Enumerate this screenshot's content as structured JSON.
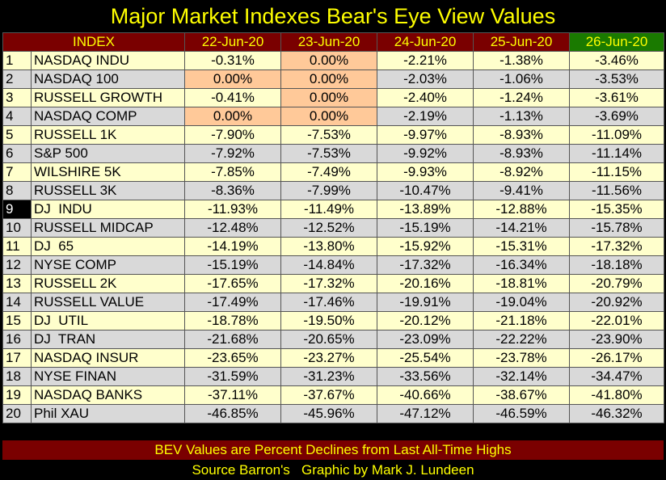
{
  "title": "Major Market Indexes Bear's Eye View Values",
  "colors": {
    "header_bg": "#7a0000",
    "header_text": "#ffff00",
    "latest_header_bg": "#1a7a00",
    "highlight_cell": "#ffc999",
    "odd_row": "#ffffcc",
    "even_row": "#d9d9d9"
  },
  "chart_data": {
    "type": "table",
    "columns": [
      "INDEX",
      "22-Jun-20",
      "23-Jun-20",
      "24-Jun-20",
      "25-Jun-20",
      "26-Jun-20"
    ],
    "rows": [
      {
        "rank": "1",
        "name": "NASDAQ INDU",
        "values": [
          "-0.31%",
          "0.00%",
          "-2.21%",
          "-1.38%",
          "-3.46%"
        ],
        "highlight": [
          false,
          true,
          false,
          false,
          false
        ]
      },
      {
        "rank": "2",
        "name": "NASDAQ 100",
        "values": [
          "0.00%",
          "0.00%",
          "-2.03%",
          "-1.06%",
          "-3.53%"
        ],
        "highlight": [
          true,
          true,
          false,
          false,
          false
        ]
      },
      {
        "rank": "3",
        "name": "RUSSELL GROWTH",
        "values": [
          "-0.41%",
          "0.00%",
          "-2.40%",
          "-1.24%",
          "-3.61%"
        ],
        "highlight": [
          false,
          true,
          false,
          false,
          false
        ]
      },
      {
        "rank": "4",
        "name": "NASDAQ COMP",
        "values": [
          "0.00%",
          "0.00%",
          "-2.19%",
          "-1.13%",
          "-3.69%"
        ],
        "highlight": [
          true,
          true,
          false,
          false,
          false
        ]
      },
      {
        "rank": "5",
        "name": "RUSSELL 1K",
        "values": [
          "-7.90%",
          "-7.53%",
          "-9.97%",
          "-8.93%",
          "-11.09%"
        ],
        "highlight": [
          false,
          false,
          false,
          false,
          false
        ]
      },
      {
        "rank": "6",
        "name": "S&P 500",
        "values": [
          "-7.92%",
          "-7.53%",
          "-9.92%",
          "-8.93%",
          "-11.14%"
        ],
        "highlight": [
          false,
          false,
          false,
          false,
          false
        ]
      },
      {
        "rank": "7",
        "name": "WILSHIRE 5K",
        "values": [
          "-7.85%",
          "-7.49%",
          "-9.93%",
          "-8.92%",
          "-11.15%"
        ],
        "highlight": [
          false,
          false,
          false,
          false,
          false
        ]
      },
      {
        "rank": "8",
        "name": "RUSSELL 3K",
        "values": [
          "-8.36%",
          "-7.99%",
          "-10.47%",
          "-9.41%",
          "-11.56%"
        ],
        "highlight": [
          false,
          false,
          false,
          false,
          false
        ]
      },
      {
        "rank": "9",
        "name": "DJ  INDU",
        "values": [
          "-11.93%",
          "-11.49%",
          "-13.89%",
          "-12.88%",
          "-15.35%"
        ],
        "highlight": [
          false,
          false,
          false,
          false,
          false
        ],
        "rank_dark": true
      },
      {
        "rank": "10",
        "name": "RUSSELL MIDCAP",
        "values": [
          "-12.48%",
          "-12.52%",
          "-15.19%",
          "-14.21%",
          "-15.78%"
        ],
        "highlight": [
          false,
          false,
          false,
          false,
          false
        ]
      },
      {
        "rank": "11",
        "name": "DJ  65",
        "values": [
          "-14.19%",
          "-13.80%",
          "-15.92%",
          "-15.31%",
          "-17.32%"
        ],
        "highlight": [
          false,
          false,
          false,
          false,
          false
        ]
      },
      {
        "rank": "12",
        "name": "NYSE COMP",
        "values": [
          "-15.19%",
          "-14.84%",
          "-17.32%",
          "-16.34%",
          "-18.18%"
        ],
        "highlight": [
          false,
          false,
          false,
          false,
          false
        ]
      },
      {
        "rank": "13",
        "name": "RUSSELL 2K",
        "values": [
          "-17.65%",
          "-17.32%",
          "-20.16%",
          "-18.81%",
          "-20.79%"
        ],
        "highlight": [
          false,
          false,
          false,
          false,
          false
        ]
      },
      {
        "rank": "14",
        "name": "RUSSELL VALUE",
        "values": [
          "-17.49%",
          "-17.46%",
          "-19.91%",
          "-19.04%",
          "-20.92%"
        ],
        "highlight": [
          false,
          false,
          false,
          false,
          false
        ]
      },
      {
        "rank": "15",
        "name": "DJ  UTIL",
        "values": [
          "-18.78%",
          "-19.50%",
          "-20.12%",
          "-21.18%",
          "-22.01%"
        ],
        "highlight": [
          false,
          false,
          false,
          false,
          false
        ]
      },
      {
        "rank": "16",
        "name": "DJ  TRAN",
        "values": [
          "-21.68%",
          "-20.65%",
          "-23.09%",
          "-22.22%",
          "-23.90%"
        ],
        "highlight": [
          false,
          false,
          false,
          false,
          false
        ]
      },
      {
        "rank": "17",
        "name": "NASDAQ INSUR",
        "values": [
          "-23.65%",
          "-23.27%",
          "-25.54%",
          "-23.78%",
          "-26.17%"
        ],
        "highlight": [
          false,
          false,
          false,
          false,
          false
        ]
      },
      {
        "rank": "18",
        "name": "NYSE FINAN",
        "values": [
          "-31.59%",
          "-31.23%",
          "-33.56%",
          "-32.14%",
          "-34.47%"
        ],
        "highlight": [
          false,
          false,
          false,
          false,
          false
        ]
      },
      {
        "rank": "19",
        "name": "NASDAQ BANKS",
        "values": [
          "-37.11%",
          "-37.67%",
          "-40.66%",
          "-38.67%",
          "-41.80%"
        ],
        "highlight": [
          false,
          false,
          false,
          false,
          false
        ]
      },
      {
        "rank": "20",
        "name": "Phil XAU",
        "values": [
          "-46.85%",
          "-45.96%",
          "-47.12%",
          "-46.59%",
          "-46.32%"
        ],
        "highlight": [
          false,
          false,
          false,
          false,
          false
        ]
      }
    ]
  },
  "footer": {
    "note": "BEV Values are Percent Declines from Last All-Time Highs",
    "credit": "Source Barron's   Graphic by Mark J. Lundeen"
  }
}
